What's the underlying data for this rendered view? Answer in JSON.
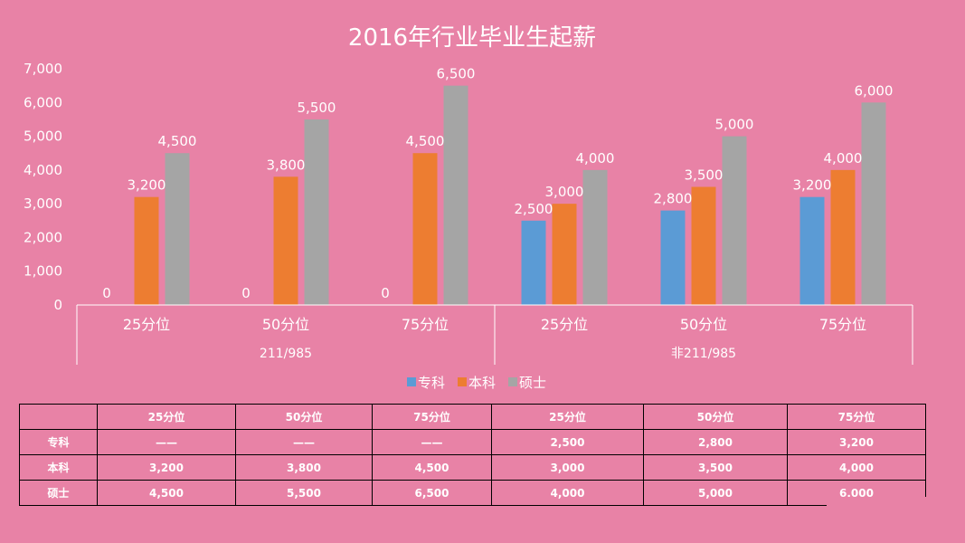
{
  "chart_data": {
    "type": "bar",
    "title": "2016年行业毕业生起薪",
    "categories": [
      "25分位",
      "50分位",
      "75分位",
      "25分位",
      "50分位",
      "75分位"
    ],
    "groups": [
      {
        "label": "211/985",
        "span": [
          0,
          2
        ]
      },
      {
        "label": "非211/985",
        "span": [
          3,
          5
        ]
      }
    ],
    "series": [
      {
        "name": "专科",
        "color": "#5b9bd5",
        "values": [
          0,
          0,
          0,
          2500,
          2800,
          3200
        ]
      },
      {
        "name": "本科",
        "color": "#ed7d31",
        "values": [
          3200,
          3800,
          4500,
          3000,
          3500,
          4000
        ]
      },
      {
        "name": "硕士",
        "color": "#a5a5a5",
        "values": [
          4500,
          5500,
          6500,
          4000,
          5000,
          6000
        ]
      }
    ],
    "data_labels": [
      [
        "0",
        "0",
        "0",
        "2,500",
        "2,800",
        "3,200"
      ],
      [
        "3,200",
        "3,800",
        "4,500",
        "3,000",
        "3,500",
        "4,000"
      ],
      [
        "4,500",
        "5,500",
        "6,500",
        "4,000",
        "5,000",
        "6,000"
      ]
    ],
    "ylim": [
      0,
      7000
    ],
    "yticks": [
      0,
      1000,
      2000,
      3000,
      4000,
      5000,
      6000,
      7000
    ],
    "ytick_labels": [
      "0",
      "1,000",
      "2,000",
      "3,000",
      "4,000",
      "5,000",
      "6,000",
      "7,000"
    ],
    "legend_position": "bottom",
    "grid": false
  },
  "table": {
    "header": [
      "",
      "25分位",
      "50分位",
      "75分位",
      "25分位",
      "50分位",
      "75分位"
    ],
    "rows": [
      {
        "label": "专科",
        "cells": [
          "——",
          "——",
          "——",
          "2,500",
          "2,800",
          "3,200"
        ]
      },
      {
        "label": "本科",
        "cells": [
          "3,200",
          "3,800",
          "4,500",
          "3,000",
          "3,500",
          "4,000"
        ]
      },
      {
        "label": "硕士",
        "cells": [
          "4,500",
          "5,500",
          "6,500",
          "4,000",
          "5,000",
          "6,000"
        ]
      }
    ]
  }
}
